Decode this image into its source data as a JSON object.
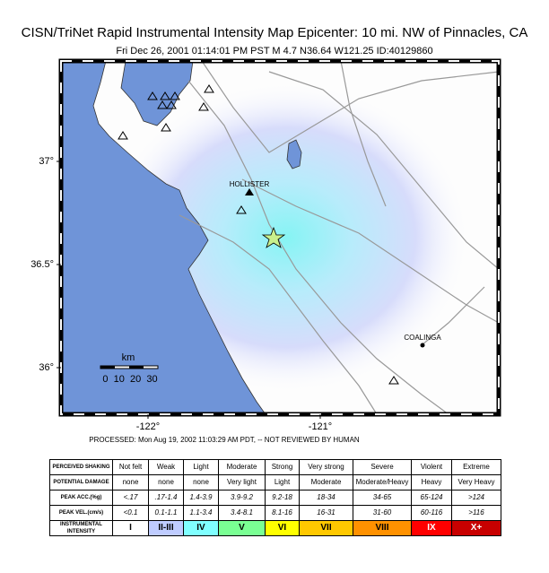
{
  "header": {
    "title": "CISN/TriNet Rapid Instrumental Intensity Map Epicenter: 10 mi. NW of Pinnacles, CA",
    "subtitle": "Fri Dec 26, 2001 01:14:01 PM PST   M 4.7   N36.64 W121.25   ID:40129860"
  },
  "map": {
    "xticks": [
      {
        "value": -122,
        "label": "-122°"
      },
      {
        "value": -121,
        "label": "-121°"
      }
    ],
    "yticks": [
      {
        "value": 37,
        "label": "37°"
      },
      {
        "value": 36.5,
        "label": "36.5°"
      },
      {
        "value": 36,
        "label": "36°"
      }
    ],
    "places": [
      "HOLLISTER",
      "COALINGA"
    ],
    "scale": {
      "unit": "km",
      "labels": "0  10  20  30"
    }
  },
  "note": "PROCESSED: Mon Aug 19, 2002 11:03:29 AM PDT, -- NOT REVIEWED BY HUMAN",
  "table": {
    "rows": [
      {
        "label": "PERCEIVED SHAKING",
        "cells": [
          "Not felt",
          "Weak",
          "Light",
          "Moderate",
          "Strong",
          "Very strong",
          "Severe",
          "Violent",
          "Extreme"
        ]
      },
      {
        "label": "POTENTIAL DAMAGE",
        "cells": [
          "none",
          "none",
          "none",
          "Very light",
          "Light",
          "Moderate",
          "Moderate/Heavy",
          "Heavy",
          "Very Heavy"
        ]
      },
      {
        "label": "PEAK ACC.(%g)",
        "cells": [
          "<.17",
          ".17-1.4",
          "1.4-3.9",
          "3.9-9.2",
          "9.2-18",
          "18-34",
          "34-65",
          "65-124",
          ">124"
        ]
      },
      {
        "label": "PEAK VEL.(cm/s)",
        "cells": [
          "<0.1",
          "0.1-1.1",
          "1.1-3.4",
          "3.4-8.1",
          "8.1-16",
          "16-31",
          "31-60",
          "60-116",
          ">116"
        ]
      },
      {
        "label": "INSTRUMENTAL INTENSITY",
        "cells": [
          "I",
          "II-III",
          "IV",
          "V",
          "VI",
          "VII",
          "VIII",
          "IX",
          "X+"
        ]
      }
    ]
  }
}
